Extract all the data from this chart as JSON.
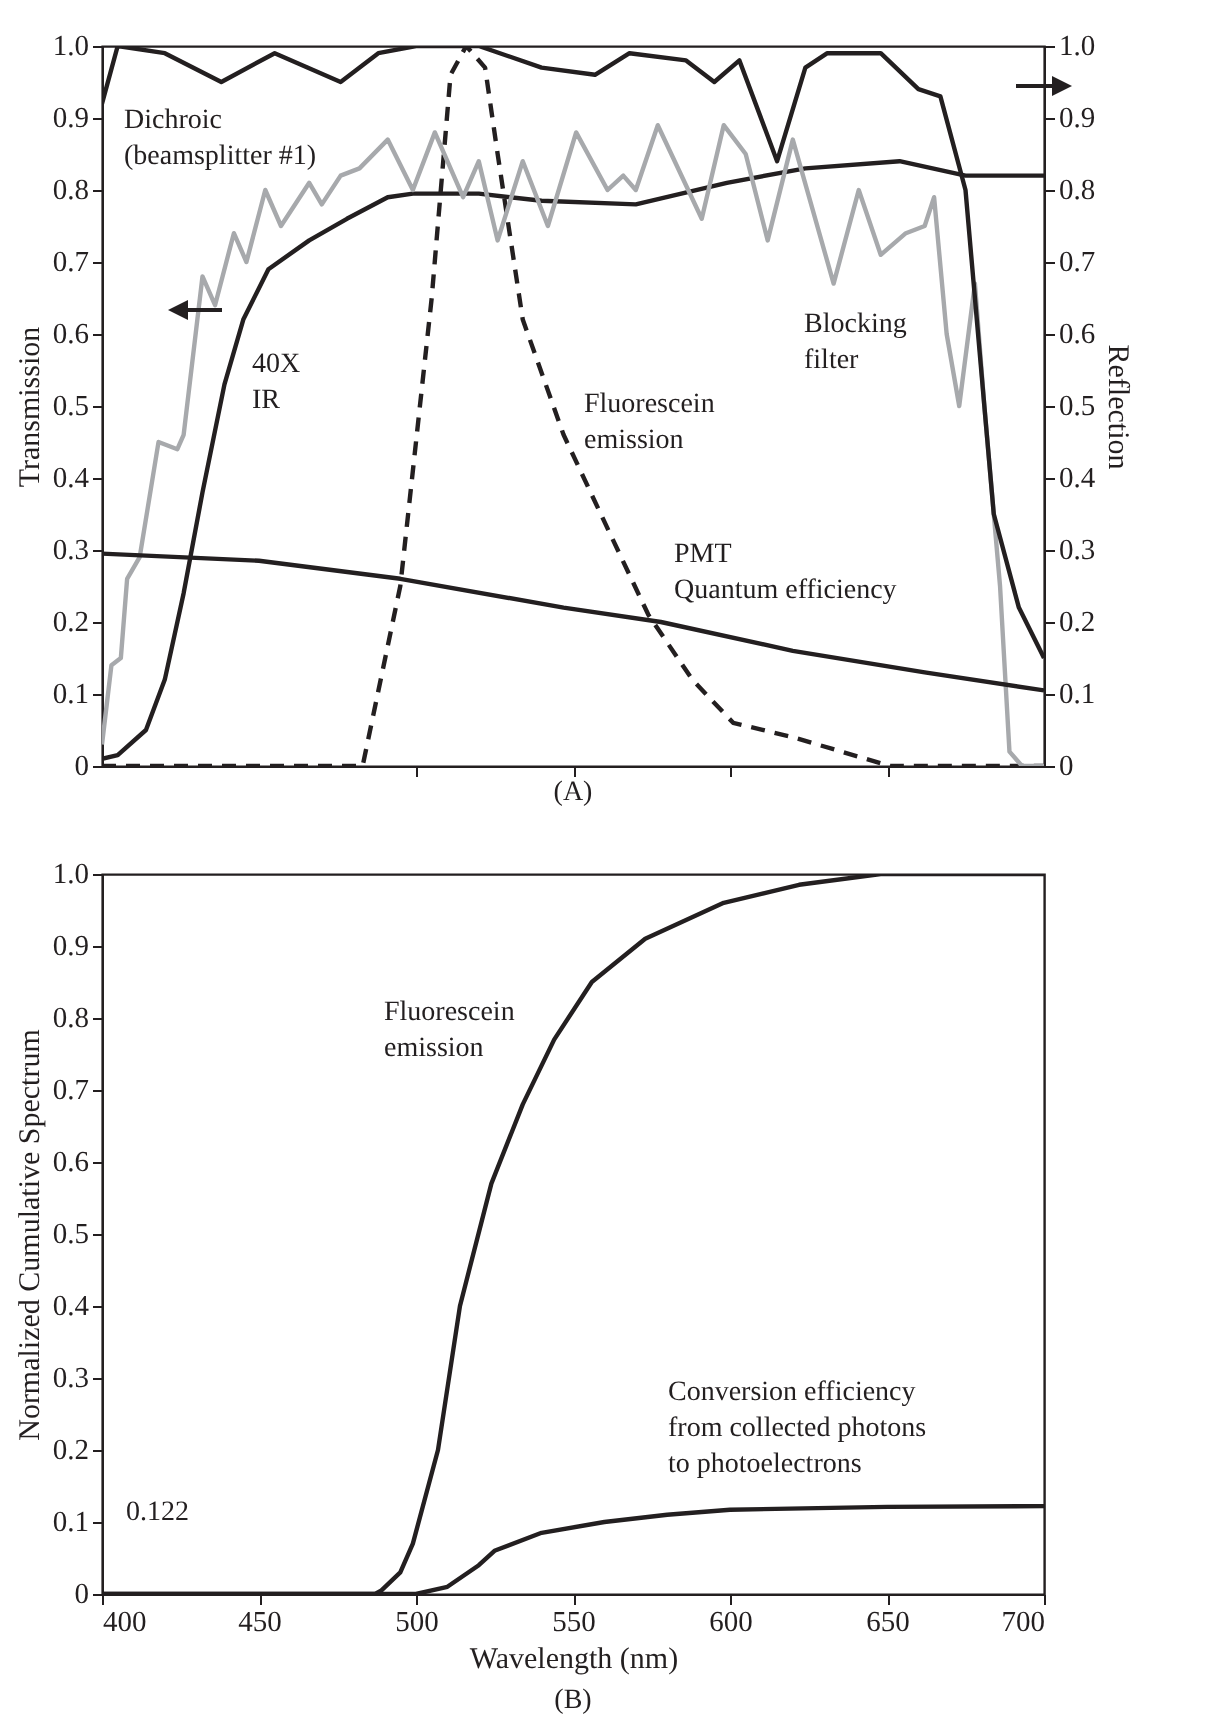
{
  "chart_data": [
    {
      "type": "line",
      "ylabel": "Transmission",
      "y2label": "Reflection",
      "annotations": [
        "(A)"
      ],
      "tick_labels": "y",
      "xlim": [
        400,
        700
      ],
      "xticks": [
        500,
        550,
        600,
        650
      ],
      "ylim": [
        0,
        1
      ],
      "yticks": [
        0,
        0.1,
        0.2,
        0.3,
        0.4,
        0.5,
        0.6,
        0.7,
        0.8,
        0.9,
        {
          "value": 1,
          "label": "1.0"
        }
      ],
      "y2lim": [
        0,
        1
      ],
      "y2ticks": [
        0,
        0.1,
        0.2,
        0.3,
        0.4,
        0.5,
        0.6,
        0.7,
        0.8,
        0.9,
        {
          "value": 1,
          "label": "1.0"
        }
      ],
      "series": [
        {
          "name": "Dichroic\n(beamsplitter #1)",
          "color": "#231f20",
          "axis": "y2",
          "line_style": "solid",
          "x": [
            400,
            405,
            420,
            438,
            455,
            476,
            488,
            500,
            520,
            540,
            557,
            568,
            586,
            595,
            603,
            615,
            624,
            631,
            648,
            660,
            667,
            675,
            684,
            692,
            700
          ],
          "values": [
            0.92,
            1.0,
            0.99,
            0.95,
            0.99,
            0.95,
            0.99,
            1.0,
            1.0,
            0.97,
            0.96,
            0.99,
            0.98,
            0.95,
            0.98,
            0.84,
            0.97,
            0.99,
            0.99,
            0.94,
            0.93,
            0.8,
            0.35,
            0.22,
            0.15
          ]
        },
        {
          "name": "40X\nIR",
          "color": "#231f20",
          "line_style": "solid",
          "x": [
            400,
            405,
            414,
            420,
            426,
            432,
            439,
            445,
            453,
            466,
            478,
            491,
            499,
            520,
            540,
            570,
            599,
            624,
            654,
            675,
            700
          ],
          "values": [
            0.01,
            0.015,
            0.05,
            0.12,
            0.24,
            0.38,
            0.53,
            0.62,
            0.69,
            0.73,
            0.76,
            0.79,
            0.795,
            0.795,
            0.785,
            0.78,
            0.81,
            0.83,
            0.84,
            0.82,
            0.82
          ]
        },
        {
          "name": "Fluorescein\nemission",
          "color": "#231f20",
          "line_style": "dashed",
          "x": [
            400,
            483,
            495,
            505,
            511,
            516,
            522,
            526,
            534,
            547,
            561,
            574,
            588,
            601,
            620,
            651,
            700
          ],
          "values": [
            0,
            0,
            0.25,
            0.65,
            0.96,
            1.0,
            0.97,
            0.85,
            0.62,
            0.46,
            0.33,
            0.21,
            0.12,
            0.06,
            0.04,
            0,
            0
          ]
        },
        {
          "name": "Blocking\nfilter",
          "color": "#a7a9ac",
          "line_style": "solid",
          "x": [
            400,
            403,
            406,
            408,
            412,
            418,
            424,
            426,
            432,
            436,
            442,
            446,
            452,
            457,
            466,
            470,
            476,
            482,
            491,
            499,
            506,
            515,
            520,
            526,
            534,
            542,
            551,
            561,
            566,
            570,
            577,
            591,
            598,
            605,
            612,
            620,
            633,
            641,
            648,
            656,
            662,
            665,
            669,
            673,
            678,
            681,
            686,
            689,
            693,
            700
          ],
          "values": [
            0.03,
            0.14,
            0.15,
            0.26,
            0.29,
            0.45,
            0.44,
            0.46,
            0.68,
            0.64,
            0.74,
            0.7,
            0.8,
            0.75,
            0.81,
            0.78,
            0.82,
            0.83,
            0.87,
            0.8,
            0.88,
            0.79,
            0.84,
            0.73,
            0.84,
            0.75,
            0.88,
            0.8,
            0.82,
            0.8,
            0.89,
            0.76,
            0.89,
            0.85,
            0.73,
            0.87,
            0.67,
            0.8,
            0.71,
            0.74,
            0.75,
            0.79,
            0.6,
            0.5,
            0.67,
            0.5,
            0.25,
            0.02,
            0,
            0
          ]
        },
        {
          "name": "PMT\nQuantum efficiency",
          "color": "#231f20",
          "line_style": "solid",
          "x": [
            400,
            450,
            495,
            547,
            578,
            620,
            662,
            700
          ],
          "values": [
            0.295,
            0.285,
            0.26,
            0.22,
            0.2,
            0.16,
            0.13,
            0.105
          ]
        }
      ]
    },
    {
      "type": "line",
      "xlabel": "Wavelength (nm)",
      "ylabel": "Normalized Cumulative Spectrum",
      "annotations": [
        "0.122",
        "(B)"
      ],
      "xlim": [
        400,
        700
      ],
      "xticks": [
        400,
        450,
        500,
        550,
        600,
        650,
        700
      ],
      "ylim": [
        0,
        1
      ],
      "yticks": [
        0,
        0.1,
        0.2,
        0.3,
        0.4,
        0.5,
        0.6,
        0.7,
        0.8,
        0.9,
        {
          "value": 1,
          "label": "1.0"
        }
      ],
      "series": [
        {
          "name": "Fluorescein\nemission",
          "color": "#231f20",
          "line_style": "solid",
          "x": [
            400,
            487,
            489,
            495,
            499,
            507,
            514,
            524,
            534,
            544,
            556,
            573,
            598,
            622,
            648,
            700
          ],
          "values": [
            0,
            0,
            0.005,
            0.03,
            0.07,
            0.2,
            0.4,
            0.57,
            0.68,
            0.77,
            0.85,
            0.91,
            0.96,
            0.985,
            1.0,
            1.0
          ]
        },
        {
          "name": "Conversion efficiency\nfrom collected photons\nto photoelectrons",
          "color": "#231f20",
          "line_style": "solid",
          "x": [
            400,
            500,
            510,
            520,
            525,
            540,
            560,
            580,
            600,
            650,
            700
          ],
          "values": [
            0,
            0,
            0.01,
            0.04,
            0.06,
            0.085,
            0.1,
            0.11,
            0.117,
            0.121,
            0.122
          ]
        }
      ]
    }
  ]
}
